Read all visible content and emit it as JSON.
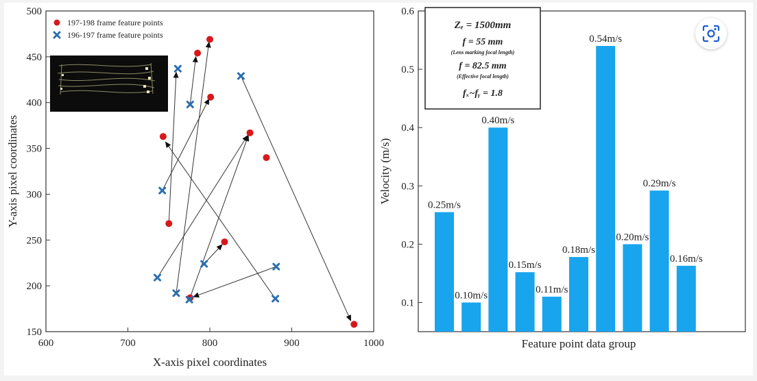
{
  "chart_data": [
    {
      "type": "scatter",
      "xlabel": "X-axis pixel coordinates",
      "ylabel": "Y-axis pixel coordinates",
      "xlim": [
        600,
        1000
      ],
      "ylim": [
        150,
        500
      ],
      "xticks": [
        "600",
        "700",
        "800",
        "900",
        "1000"
      ],
      "yticks": [
        "150",
        "200",
        "250",
        "300",
        "350",
        "400",
        "450",
        "500"
      ],
      "legend": [
        {
          "name": "197-198 frame feature points",
          "marker": "circle",
          "color": "#d7191c"
        },
        {
          "name": "196-197 frame feature points",
          "marker": "x",
          "color": "#2c6fb0"
        }
      ],
      "series_red": [
        [
          800,
          469
        ],
        [
          785,
          454
        ],
        [
          801,
          406
        ],
        [
          743,
          363
        ],
        [
          849,
          367
        ],
        [
          869,
          340
        ],
        [
          750,
          268
        ],
        [
          818,
          248
        ],
        [
          776,
          187
        ],
        [
          976,
          158
        ]
      ],
      "series_blue": [
        [
          761,
          437
        ],
        [
          776,
          398
        ],
        [
          838,
          429
        ],
        [
          742,
          304
        ],
        [
          736,
          209
        ],
        [
          793,
          224
        ],
        [
          759,
          192
        ],
        [
          775,
          185
        ],
        [
          881,
          221
        ],
        [
          880,
          186
        ]
      ],
      "arrows": [
        {
          "from": [
            838,
            429
          ],
          "to": [
            972,
            162
          ]
        },
        {
          "from": [
            880,
            186
          ],
          "to": [
            746,
            357
          ]
        },
        {
          "from": [
            881,
            221
          ],
          "to": [
            780,
            188
          ]
        },
        {
          "from": [
            742,
            304
          ],
          "to": [
            799,
            404
          ]
        },
        {
          "from": [
            736,
            209
          ],
          "to": [
            846,
            364
          ]
        },
        {
          "from": [
            793,
            224
          ],
          "to": [
            815,
            245
          ]
        },
        {
          "from": [
            759,
            192
          ],
          "to": [
            799,
            466
          ]
        },
        {
          "from": [
            776,
            398
          ],
          "to": [
            783,
            450
          ]
        },
        {
          "from": [
            775,
            185
          ],
          "to": [
            847,
            364
          ]
        },
        {
          "from": [
            750,
            268
          ],
          "to": [
            759,
            433
          ]
        }
      ]
    },
    {
      "type": "bar",
      "xlabel": "Feature point data group",
      "ylabel": "Velocity (m/s)",
      "ylim": [
        0.05,
        0.6
      ],
      "yticks": [
        "0.1",
        "0.2",
        "0.3",
        "0.4",
        "0.5",
        "0.6"
      ],
      "values": [
        0.255,
        0.1,
        0.4,
        0.152,
        0.11,
        0.178,
        0.54,
        0.2,
        0.292,
        0.163
      ],
      "labels": [
        "0.25m/s",
        "0.10m/s",
        "0.40m/s",
        "0.15m/s",
        "0.11m/s",
        "0.18m/s",
        "0.54m/s",
        "0.20m/s",
        "0.29m/s",
        "0.16m/s"
      ],
      "color": "#18a5ee",
      "info_box": {
        "line1": "Zₑ = 1500mm",
        "line2": "f = 55 mm",
        "line3": "(Lens marking focal length)",
        "line4": "f = 82.5 mm",
        "line5": "(Effective focal length)",
        "line6": "fₓ~fᵧ = 1.8"
      }
    }
  ],
  "lens_button": {
    "icon": "lens-scan-icon"
  }
}
